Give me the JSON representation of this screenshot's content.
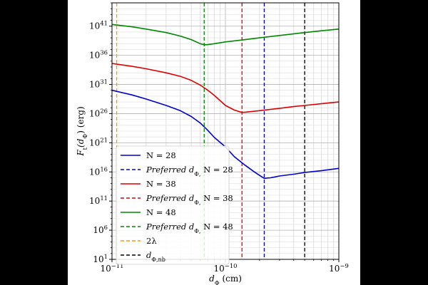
{
  "chart_data": {
    "type": "line",
    "xscale": "log",
    "yscale": "log",
    "xlim": [
      1e-11,
      1e-09
    ],
    "ylim": [
      10.0,
      1e+45
    ],
    "xlabel": "d_Φ (cm)",
    "ylabel": "F_t(d_Φ) (erg)",
    "grid": true,
    "legend_position": "lower-left",
    "x_ticks": [
      {
        "value": 1e-11,
        "base": "10",
        "exp": "−11"
      },
      {
        "value": 1e-10,
        "base": "10",
        "exp": "−10"
      },
      {
        "value": 1e-09,
        "base": "10",
        "exp": "−9"
      }
    ],
    "y_ticks": [
      {
        "value": 10.0,
        "base": "10",
        "exp": "1"
      },
      {
        "value": 1000000.0,
        "base": "10",
        "exp": "6"
      },
      {
        "value": 100000000000.0,
        "base": "10",
        "exp": "11"
      },
      {
        "value": 1e+16,
        "base": "10",
        "exp": "16"
      },
      {
        "value": 1e+21,
        "base": "10",
        "exp": "21"
      },
      {
        "value": 1e+26,
        "base": "10",
        "exp": "26"
      },
      {
        "value": 1e+31,
        "base": "10",
        "exp": "31"
      },
      {
        "value": 1e+36,
        "base": "10",
        "exp": "36"
      },
      {
        "value": 1e+41,
        "base": "10",
        "exp": "41"
      }
    ],
    "series": [
      {
        "name": "N = 28",
        "color": "#0000cc",
        "points": [
          [
            1e-11,
            1e+30
          ],
          [
            1.5e-11,
            1.6e+29
          ],
          [
            2e-11,
            3.2e+28
          ],
          [
            3e-11,
            2.5e+27
          ],
          [
            4e-11,
            3.2e+26
          ],
          [
            5e-11,
            3.2e+25
          ],
          [
            6e-11,
            2.5e+24
          ],
          [
            7e-11,
            1.3e+23
          ],
          [
            8e-11,
            7.9e+21
          ],
          [
            1e-10,
            2e+20
          ],
          [
            1.2e-10,
            4e+18
          ],
          [
            1.5e-10,
            1.3e+17
          ],
          [
            1.8e-10,
            1e+16
          ],
          [
            2e-10,
            2500000000000000.0
          ],
          [
            2.2e-10,
            790000000000000.0
          ],
          [
            2.5e-10,
            1000000000000000.0
          ],
          [
            3e-10,
            2000000000000000.0
          ],
          [
            4e-10,
            4000000000000000.0
          ],
          [
            5e-10,
            7900000000000000.0
          ],
          [
            7e-10,
            1.6e+16
          ],
          [
            1e-09,
            4e+16
          ]
        ]
      },
      {
        "name": "N = 38",
        "color": "#dd0000",
        "points": [
          [
            1e-11,
            4e+34
          ],
          [
            1.5e-11,
            1.3e+34
          ],
          [
            2e-11,
            5e+33
          ],
          [
            3e-11,
            1e+33
          ],
          [
            4e-11,
            2.5e+32
          ],
          [
            5e-11,
            5e+31
          ],
          [
            6e-11,
            7.9e+30
          ],
          [
            7e-11,
            1e+30
          ],
          [
            8e-11,
            1.3e+29
          ],
          [
            9e-11,
            1.6e+28
          ],
          [
            1e-10,
            2.5e+27
          ],
          [
            1.2e-10,
            4e+26
          ],
          [
            1.4e-10,
            1.6e+26
          ],
          [
            1.5e-10,
            1.8e+26
          ],
          [
            2e-10,
            3.2e+26
          ],
          [
            3e-10,
            7.9e+26
          ],
          [
            4e-10,
            1.6e+27
          ],
          [
            5e-10,
            2.5e+27
          ],
          [
            7e-10,
            5e+27
          ],
          [
            1e-09,
            1e+28
          ]
        ]
      },
      {
        "name": "N = 48",
        "color": "#008800",
        "points": [
          [
            1e-11,
            2e+41
          ],
          [
            1.5e-11,
            7.9e+40
          ],
          [
            2e-11,
            3.2e+40
          ],
          [
            3e-11,
            7.9e+39
          ],
          [
            4e-11,
            2e+39
          ],
          [
            5e-11,
            5e+38
          ],
          [
            6e-11,
            1e+38
          ],
          [
            6.5e-11,
            6.3e+37
          ],
          [
            7e-11,
            6.8e+37
          ],
          [
            8e-11,
            1e+38
          ],
          [
            1e-10,
            2e+38
          ],
          [
            1.5e-10,
            5e+38
          ],
          [
            2e-10,
            1e+39
          ],
          [
            3e-10,
            2.5e+39
          ],
          [
            5e-10,
            7.9e+39
          ],
          [
            7e-10,
            1.6e+40
          ],
          [
            1e-09,
            3.2e+40
          ]
        ]
      }
    ],
    "vlines": [
      {
        "name": "Preferred d_Φ, N = 28",
        "x": 2.2e-10,
        "color": "#0000cc"
      },
      {
        "name": "Preferred d_Φ, N = 38",
        "x": 1.4e-10,
        "color": "#dd0000"
      },
      {
        "name": "Preferred d_Φ, N = 48",
        "x": 6.5e-11,
        "color": "#008800"
      },
      {
        "name": "2λ",
        "x": 1.1e-11,
        "color": "#ff9900"
      },
      {
        "name": "d_Φ,nb",
        "x": 5e-10,
        "color": "#000000"
      }
    ],
    "legend": [
      {
        "style": "solid",
        "color": "#0000cc",
        "label": "N = 28"
      },
      {
        "style": "dashed",
        "color": "#0000cc",
        "label": "Preferred d_Φ, N = 28"
      },
      {
        "style": "solid",
        "color": "#dd0000",
        "label": "N = 38"
      },
      {
        "style": "dashed",
        "color": "#dd0000",
        "label": "Preferred d_Φ, N = 38"
      },
      {
        "style": "solid",
        "color": "#008800",
        "label": "N = 48"
      },
      {
        "style": "dashed",
        "color": "#008800",
        "label": "Preferred d_Φ, N = 48"
      },
      {
        "style": "dashed",
        "color": "#ff9900",
        "label": "2λ"
      },
      {
        "style": "dashed",
        "color": "#000000",
        "label": "d_Φ,nb"
      }
    ]
  }
}
